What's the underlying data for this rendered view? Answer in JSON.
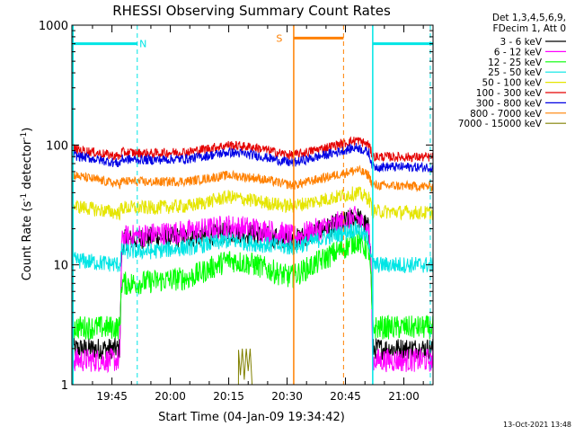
{
  "chart_data": {
    "type": "line",
    "title": "RHESSI Observing Summary Count Rates",
    "xlabel": "Start Time (04-Jan-09 19:34:42)",
    "ylabel_main": "Count Rate (s",
    "ylabel_sup1": "-1",
    "ylabel_mid": " detector",
    "ylabel_sup2": "-1",
    "ylabel_end": ")",
    "y_scale": "log",
    "xlim": [
      34.7,
      127.5
    ],
    "ylim": [
      1,
      1000
    ],
    "x_ticks": [
      {
        "v": 45,
        "label": "19:45"
      },
      {
        "v": 60,
        "label": "20:00"
      },
      {
        "v": 75,
        "label": "20:15"
      },
      {
        "v": 90,
        "label": "20:30"
      },
      {
        "v": 105,
        "label": "20:45"
      },
      {
        "v": 120,
        "label": "21:00"
      }
    ],
    "y_ticks": [
      {
        "v": 1,
        "label": "1"
      },
      {
        "v": 10,
        "label": "10"
      },
      {
        "v": 100,
        "label": "100"
      },
      {
        "v": 1000,
        "label": "1000"
      }
    ],
    "legend_title": [
      "Det 1,3,4,5,6,9,",
      "FDecim 1, Att 0"
    ],
    "legend_placement": "right",
    "flags": [
      {
        "name": "N",
        "color": "#00e5e5",
        "bar": [
          34.7,
          51.5
        ],
        "dashed_lines": [
          51.5
        ],
        "label_x": 53,
        "bar_y": 700
      },
      {
        "name": "S",
        "color": "#ff8000",
        "bar": [
          91.7,
          104.5
        ],
        "dashed_lines": [
          104.5
        ],
        "label_x": 88,
        "bar_y": 780
      },
      {
        "name": "",
        "color": "#00e5e5",
        "bar": [
          112,
          127.5
        ],
        "dashed_lines": [
          126.8
        ],
        "label_x": 0,
        "bar_y": 700
      }
    ],
    "solid_lines": [
      {
        "x": 35,
        "color": "#00e5e5"
      },
      {
        "x": 91.7,
        "color": "#ff8000"
      },
      {
        "x": 112,
        "color": "#00e5e5"
      }
    ],
    "series": [
      {
        "name": "3 - 6 keV",
        "color": "#000000",
        "points": [
          [
            35,
            2
          ],
          [
            47,
            2
          ],
          [
            47.5,
            12
          ],
          [
            48,
            16
          ],
          [
            55,
            17
          ],
          [
            65,
            17
          ],
          [
            75,
            18.5
          ],
          [
            82,
            18
          ],
          [
            90,
            16
          ],
          [
            91.5,
            16
          ],
          [
            108,
            25
          ],
          [
            110,
            22
          ],
          [
            111,
            20
          ],
          [
            111.5,
            12
          ],
          [
            112,
            2
          ],
          [
            127.5,
            2
          ]
        ]
      },
      {
        "name": "6 - 12 keV",
        "color": "#ff00ff",
        "points": [
          [
            35,
            1.6
          ],
          [
            47,
            1.6
          ],
          [
            47.5,
            15
          ],
          [
            48,
            17
          ],
          [
            55,
            18
          ],
          [
            65,
            19
          ],
          [
            75,
            21
          ],
          [
            82,
            20
          ],
          [
            90,
            18
          ],
          [
            91.5,
            17
          ],
          [
            108,
            25
          ],
          [
            110,
            20
          ],
          [
            111,
            20
          ],
          [
            111.5,
            12
          ],
          [
            112,
            1.6
          ],
          [
            127.5,
            1.6
          ]
        ]
      },
      {
        "name": "12 - 25 keV",
        "color": "#00ff00",
        "points": [
          [
            35,
            3
          ],
          [
            47,
            3
          ],
          [
            47.5,
            7
          ],
          [
            50,
            7
          ],
          [
            65,
            7.8
          ],
          [
            75,
            11
          ],
          [
            82,
            10
          ],
          [
            90,
            8
          ],
          [
            91.5,
            8
          ],
          [
            108,
            16
          ],
          [
            111,
            13
          ],
          [
            111.5,
            8
          ],
          [
            112,
            3
          ],
          [
            127.5,
            3
          ]
        ]
      },
      {
        "name": "25 - 50 keV",
        "color": "#00e5e5",
        "points": [
          [
            35,
            11
          ],
          [
            47,
            10
          ],
          [
            47.5,
            13
          ],
          [
            55,
            13
          ],
          [
            65,
            14
          ],
          [
            75,
            16
          ],
          [
            82,
            15
          ],
          [
            90,
            14
          ],
          [
            91.5,
            14
          ],
          [
            108,
            20
          ],
          [
            111,
            16
          ],
          [
            112,
            10
          ],
          [
            127.5,
            10
          ]
        ]
      },
      {
        "name": "50 - 100 keV",
        "color": "#e5e500",
        "points": [
          [
            35,
            31
          ],
          [
            47,
            27
          ],
          [
            47.5,
            30
          ],
          [
            55,
            30
          ],
          [
            65,
            31
          ],
          [
            75,
            37
          ],
          [
            82,
            34
          ],
          [
            90,
            31
          ],
          [
            91.5,
            31
          ],
          [
            108,
            40
          ],
          [
            111,
            36
          ],
          [
            112,
            28
          ],
          [
            127.5,
            27
          ]
        ]
      },
      {
        "name": "100 - 300 keV",
        "color": "#e50000",
        "points": [
          [
            35,
            93
          ],
          [
            47,
            80
          ],
          [
            47.5,
            87
          ],
          [
            55,
            85
          ],
          [
            65,
            88
          ],
          [
            75,
            100
          ],
          [
            82,
            95
          ],
          [
            90,
            83
          ],
          [
            91.5,
            82
          ],
          [
            108,
            110
          ],
          [
            111,
            100
          ],
          [
            112,
            80
          ],
          [
            127.5,
            79
          ]
        ]
      },
      {
        "name": "300 - 800 keV",
        "color": "#0000e5",
        "points": [
          [
            35,
            82
          ],
          [
            47,
            70
          ],
          [
            47.5,
            76
          ],
          [
            55,
            75
          ],
          [
            65,
            77
          ],
          [
            75,
            87
          ],
          [
            82,
            82
          ],
          [
            90,
            72
          ],
          [
            91.5,
            71
          ],
          [
            108,
            96
          ],
          [
            111,
            86
          ],
          [
            112,
            66
          ],
          [
            127.5,
            65
          ]
        ]
      },
      {
        "name": "800 - 7000 keV",
        "color": "#ff8000",
        "points": [
          [
            35,
            56
          ],
          [
            47,
            47
          ],
          [
            47.5,
            50
          ],
          [
            55,
            49
          ],
          [
            65,
            50
          ],
          [
            75,
            56
          ],
          [
            82,
            53
          ],
          [
            90,
            47
          ],
          [
            91.5,
            46
          ],
          [
            108,
            62
          ],
          [
            111,
            56
          ],
          [
            112,
            46
          ],
          [
            127.5,
            45
          ]
        ]
      },
      {
        "name": "7000 - 15000 keV",
        "color": "#808000",
        "points": [
          [
            73,
            1
          ],
          [
            77.5,
            1
          ],
          [
            77.5,
            2
          ],
          [
            78,
            1.2
          ],
          [
            78.5,
            2
          ],
          [
            79,
            1.1
          ],
          [
            79.5,
            2
          ],
          [
            80,
            1.3
          ],
          [
            80.5,
            2
          ],
          [
            81,
            1
          ]
        ]
      }
    ]
  },
  "footer": {
    "timestamp": "13-Oct-2021 13:48"
  }
}
